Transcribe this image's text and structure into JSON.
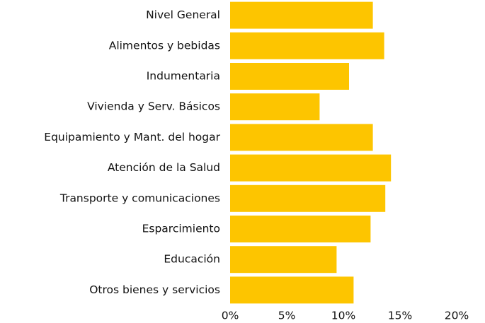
{
  "chart_data": {
    "type": "bar",
    "orientation": "horizontal",
    "categories": [
      "Nivel General",
      "Alimentos y bebidas",
      "Indumentaria",
      "Vivienda y Serv. Básicos",
      "Equipamiento y Mant. del hogar",
      "Atención de la Salud",
      "Transporte y comunicaciones",
      "Esparcimiento",
      "Educación",
      "Otros bienes y servicios"
    ],
    "values": [
      12.6,
      13.6,
      10.5,
      7.9,
      12.6,
      14.2,
      13.7,
      12.4,
      9.4,
      10.9
    ],
    "color": "#fdc500",
    "xlim": [
      0,
      20
    ],
    "xticks": [
      {
        "value": 0,
        "label": "0%"
      },
      {
        "value": 5,
        "label": "5%"
      },
      {
        "value": 10,
        "label": "10%"
      },
      {
        "value": 15,
        "label": "15%"
      },
      {
        "value": 20,
        "label": "20%"
      }
    ],
    "grid": false
  }
}
